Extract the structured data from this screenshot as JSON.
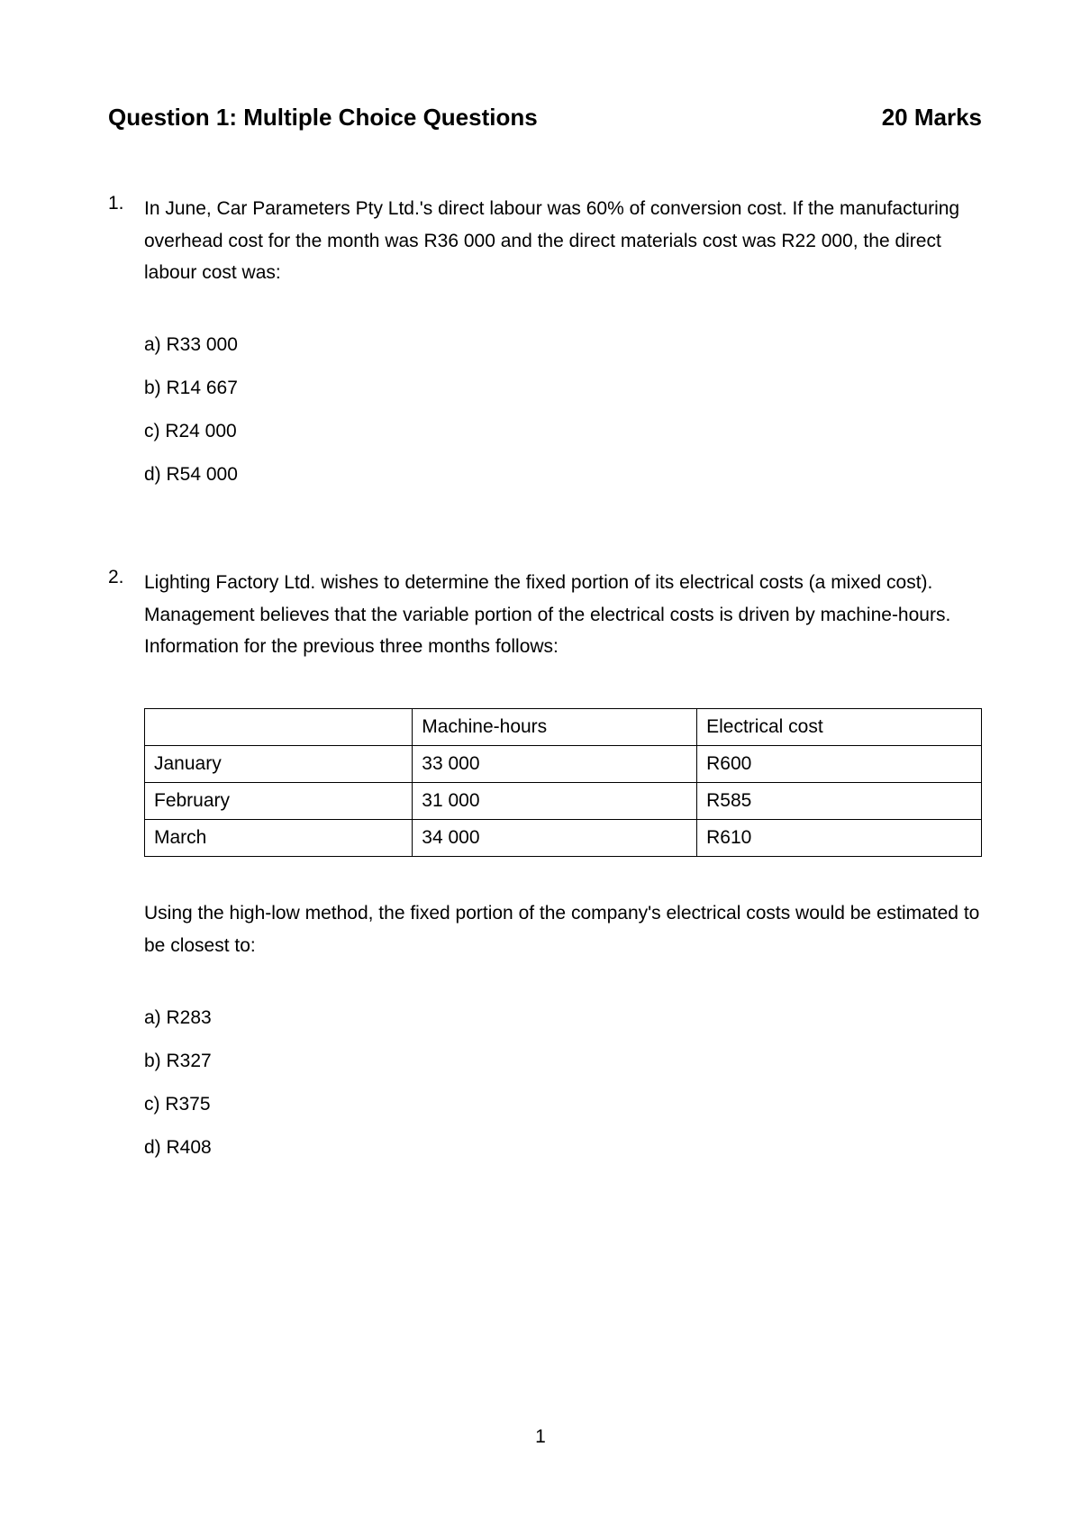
{
  "header": {
    "title": "Question 1: Multiple Choice Questions",
    "marks": "20 Marks"
  },
  "questions": [
    {
      "number": "1.",
      "text": "In June, Car Parameters Pty Ltd.'s direct labour was 60% of conversion cost. If the manufacturing overhead cost for the month was R36 000 and the direct materials cost was R22 000, the direct labour cost was:",
      "options": [
        "a) R33 000",
        "b) R14 667",
        "c) R24 000",
        "d) R54 000"
      ]
    },
    {
      "number": "2.",
      "text": "Lighting Factory Ltd. wishes to determine the fixed portion of its electrical costs (a mixed cost). Management believes that the variable portion of the electrical costs is driven by machine-hours. Information for the previous three months follows:",
      "table": {
        "columns": [
          "",
          "Machine-hours",
          "Electrical cost"
        ],
        "rows": [
          [
            "January",
            "33 000",
            "R600"
          ],
          [
            "February",
            "31 000",
            "R585"
          ],
          [
            "March",
            "34 000",
            "R610"
          ]
        ]
      },
      "follow_text": "Using the high-low method, the fixed portion of the company's electrical costs would be estimated to be closest to:",
      "options": [
        "a) R283",
        "b) R327",
        "c) R375",
        "d) R408"
      ]
    }
  ],
  "page_number": "1",
  "styling": {
    "body_fontsize": 21,
    "header_fontsize": 26,
    "line_height": 1.7,
    "text_color": "#000000",
    "background_color": "#ffffff",
    "table_border_color": "#000000",
    "font_family": "Arial"
  }
}
